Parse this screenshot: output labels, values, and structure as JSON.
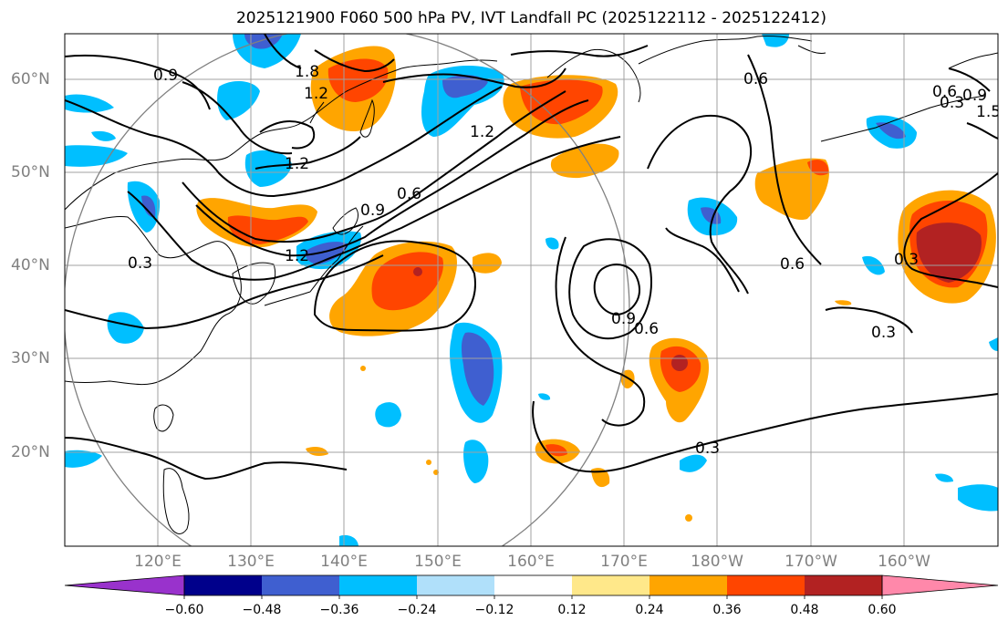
{
  "title": "2025121900 F060 500 hPa PV, IVT Landfall PC (2025122112 - 2025122412)",
  "map": {
    "lat_labels": [
      "60°N",
      "50°N",
      "40°N",
      "30°N",
      "20°N"
    ],
    "lon_labels": [
      "120°E",
      "130°E",
      "140°E",
      "150°E",
      "160°E",
      "170°E",
      "180°W",
      "170°W",
      "160°W"
    ],
    "contour_labels": [
      "0.9",
      "1.8",
      "1.2",
      "1.2",
      "0.9",
      "0.6",
      "1.2",
      "0.3",
      "1.2",
      "0.6",
      "0.9",
      "0.6",
      "0.6",
      "0.3",
      "0.3",
      "0.3",
      "0.3",
      "0.6",
      "1.5",
      "0.9"
    ],
    "grid_color": "#a0a0a0",
    "contour_color": "#000000",
    "circle_color": "#808080"
  },
  "colorbar": {
    "ticks": [
      "−0.60",
      "−0.48",
      "−0.36",
      "−0.24",
      "−0.12",
      "0.12",
      "0.24",
      "0.36",
      "0.48",
      "0.60"
    ],
    "colors": [
      "#9932cc",
      "#00008b",
      "#3f5fd0",
      "#00bfff",
      "#b0e0fa",
      "#ffffff",
      "#ffe88a",
      "#ffa500",
      "#ff4500",
      "#b22222",
      "#ff88aa"
    ]
  }
}
